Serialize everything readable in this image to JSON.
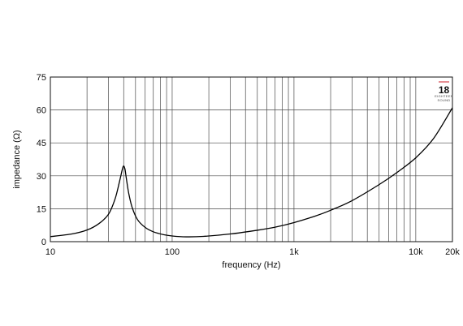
{
  "chart_data": {
    "type": "line",
    "xlabel": "frequency (Hz)",
    "ylabel": "impedance (Ω)",
    "x_scale": "log",
    "xlim": [
      10,
      20000
    ],
    "ylim": [
      0,
      75
    ],
    "grid": true,
    "x_ticks": [
      {
        "value": 10,
        "label": "10"
      },
      {
        "value": 100,
        "label": "100"
      },
      {
        "value": 1000,
        "label": "1k"
      },
      {
        "value": 10000,
        "label": "10k"
      },
      {
        "value": 20000,
        "label": "20k"
      }
    ],
    "y_ticks": [
      {
        "value": 0,
        "label": "0"
      },
      {
        "value": 15,
        "label": "15"
      },
      {
        "value": 30,
        "label": "30"
      },
      {
        "value": 45,
        "label": "45"
      },
      {
        "value": 60,
        "label": "60"
      },
      {
        "value": 75,
        "label": "75"
      }
    ],
    "series": [
      {
        "x": [
          10,
          15,
          20,
          25,
          30,
          34,
          37,
          39,
          40,
          41,
          42,
          44,
          47,
          52,
          60,
          70,
          85,
          100,
          130,
          180,
          300,
          500,
          700,
          1000,
          1500,
          2000,
          3000,
          5000,
          7000,
          10000,
          14000,
          20000
        ],
        "y": [
          2.3,
          3.5,
          5.3,
          8.2,
          12.5,
          19.5,
          27.5,
          33.0,
          34.5,
          33.0,
          29.0,
          22.0,
          15.5,
          10.0,
          6.5,
          4.5,
          3.2,
          2.6,
          2.2,
          2.4,
          3.5,
          5.2,
          6.6,
          8.7,
          11.7,
          14.3,
          18.7,
          26.0,
          31.5,
          38.2,
          47.0,
          61.0
        ]
      }
    ]
  },
  "logo": {
    "number": "18",
    "sub1": "EIGHTEEN",
    "sub2": "SOUND",
    "accent": "#cc1f2a"
  }
}
